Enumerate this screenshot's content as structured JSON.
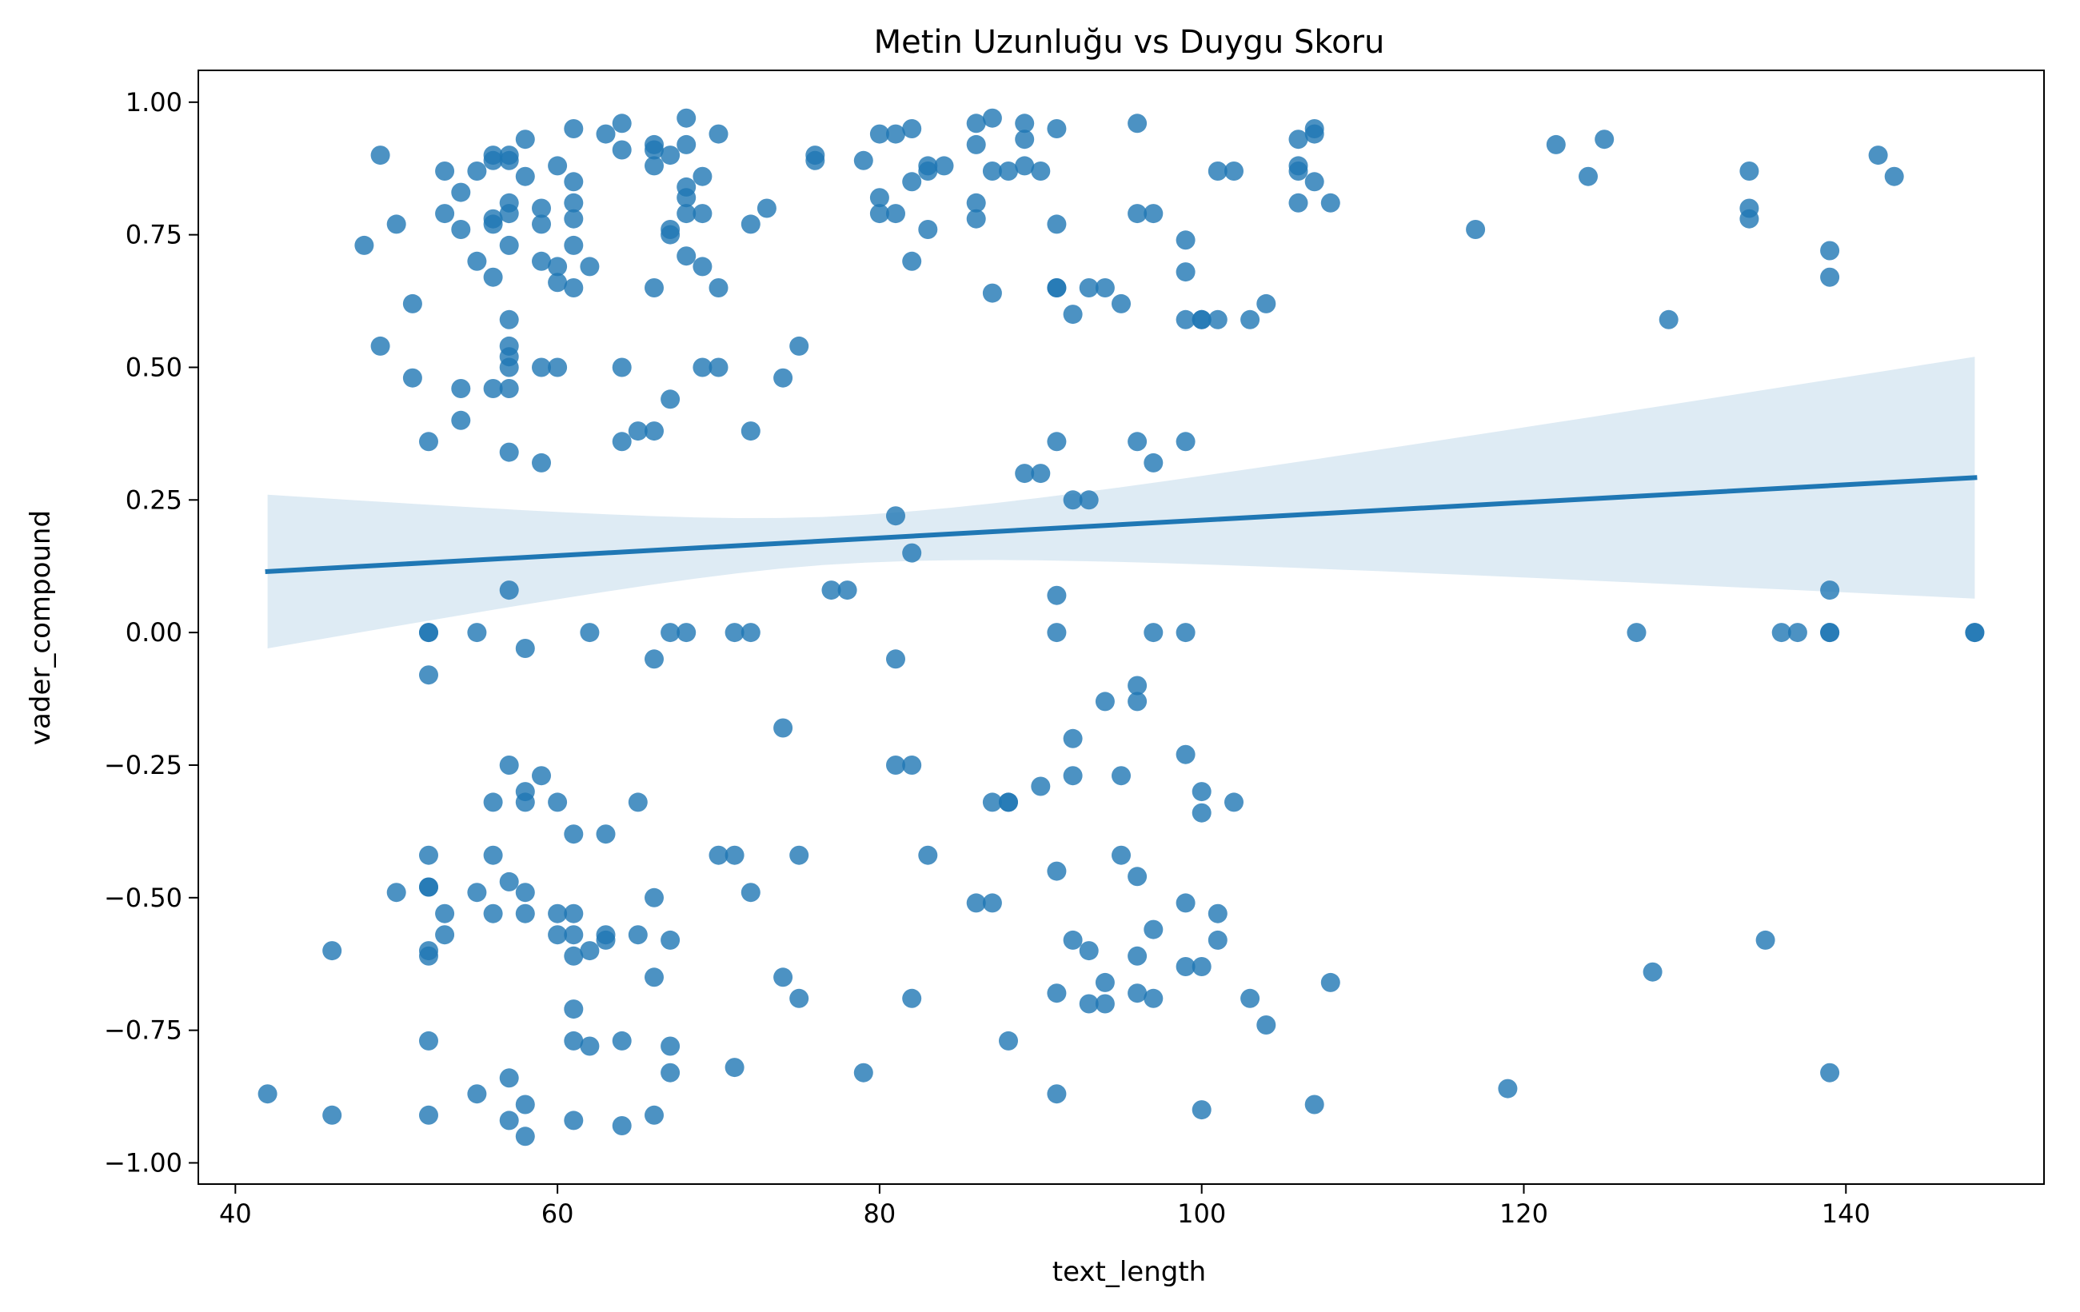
{
  "chart_data": {
    "type": "scatter",
    "title": "Metin Uzunluğu vs Duygu Skoru",
    "xlabel": "text_length",
    "ylabel": "vader_compound",
    "xlim": [
      37.7,
      152.3
    ],
    "ylim": [
      -1.04,
      1.06
    ],
    "xticks": [
      40,
      60,
      80,
      100,
      120,
      140
    ],
    "xtick_labels": [
      "40",
      "60",
      "80",
      "100",
      "120",
      "140"
    ],
    "yticks": [
      1.0,
      0.75,
      0.5,
      0.25,
      0.0,
      -0.25,
      -0.5,
      -0.75,
      -1.0
    ],
    "ytick_labels": [
      "1.00",
      "0.75",
      "0.50",
      "0.25",
      "0.00",
      "−0.25",
      "−0.50",
      "−0.75",
      "−1.00"
    ],
    "grid": false,
    "colors": {
      "points": "#1f77b4",
      "line": "#1f77b4",
      "band": "#1f77b4"
    },
    "series": [
      {
        "values": [
          [
            42,
            -0.87
          ],
          [
            46,
            -0.6
          ],
          [
            46,
            -0.91
          ],
          [
            48,
            0.73
          ],
          [
            49,
            0.9
          ],
          [
            49,
            0.54
          ],
          [
            50,
            0.77
          ],
          [
            50,
            -0.49
          ],
          [
            51,
            0.62
          ],
          [
            51,
            0.48
          ],
          [
            52,
            0.36
          ],
          [
            52,
            0.0
          ],
          [
            52,
            0.0
          ],
          [
            52,
            -0.08
          ],
          [
            52,
            -0.42
          ],
          [
            52,
            -0.48
          ],
          [
            52,
            -0.48
          ],
          [
            52,
            -0.6
          ],
          [
            52,
            -0.61
          ],
          [
            52,
            -0.77
          ],
          [
            52,
            -0.91
          ],
          [
            53,
            0.87
          ],
          [
            53,
            0.79
          ],
          [
            53,
            -0.53
          ],
          [
            53,
            -0.57
          ],
          [
            54,
            0.83
          ],
          [
            54,
            0.76
          ],
          [
            54,
            0.46
          ],
          [
            54,
            0.4
          ],
          [
            55,
            0.87
          ],
          [
            55,
            0.7
          ],
          [
            55,
            0.0
          ],
          [
            55,
            -0.49
          ],
          [
            55,
            -0.87
          ],
          [
            56,
            0.9
          ],
          [
            56,
            0.89
          ],
          [
            56,
            0.78
          ],
          [
            56,
            0.77
          ],
          [
            56,
            0.67
          ],
          [
            56,
            0.46
          ],
          [
            56,
            -0.32
          ],
          [
            56,
            -0.42
          ],
          [
            56,
            -0.53
          ],
          [
            57,
            0.9
          ],
          [
            57,
            0.89
          ],
          [
            57,
            0.81
          ],
          [
            57,
            0.79
          ],
          [
            57,
            0.73
          ],
          [
            57,
            0.59
          ],
          [
            57,
            0.54
          ],
          [
            57,
            0.52
          ],
          [
            57,
            0.5
          ],
          [
            57,
            0.46
          ],
          [
            57,
            0.34
          ],
          [
            57,
            0.08
          ],
          [
            57,
            -0.25
          ],
          [
            57,
            -0.47
          ],
          [
            57,
            -0.84
          ],
          [
            57,
            -0.92
          ],
          [
            58,
            0.93
          ],
          [
            58,
            0.86
          ],
          [
            58,
            -0.03
          ],
          [
            58,
            -0.3
          ],
          [
            58,
            -0.32
          ],
          [
            58,
            -0.49
          ],
          [
            58,
            -0.53
          ],
          [
            58,
            -0.89
          ],
          [
            58,
            -0.95
          ],
          [
            59,
            0.8
          ],
          [
            59,
            0.77
          ],
          [
            59,
            0.7
          ],
          [
            59,
            0.5
          ],
          [
            59,
            0.32
          ],
          [
            59,
            -0.27
          ],
          [
            60,
            0.88
          ],
          [
            60,
            0.69
          ],
          [
            60,
            0.66
          ],
          [
            60,
            0.5
          ],
          [
            60,
            -0.32
          ],
          [
            60,
            -0.53
          ],
          [
            60,
            -0.57
          ],
          [
            61,
            0.95
          ],
          [
            61,
            0.85
          ],
          [
            61,
            0.81
          ],
          [
            61,
            0.78
          ],
          [
            61,
            0.73
          ],
          [
            61,
            0.65
          ],
          [
            61,
            -0.38
          ],
          [
            61,
            -0.53
          ],
          [
            61,
            -0.57
          ],
          [
            61,
            -0.61
          ],
          [
            61,
            -0.71
          ],
          [
            61,
            -0.77
          ],
          [
            61,
            -0.92
          ],
          [
            62,
            0.69
          ],
          [
            62,
            0.0
          ],
          [
            62,
            -0.6
          ],
          [
            62,
            -0.78
          ],
          [
            63,
            0.94
          ],
          [
            63,
            -0.38
          ],
          [
            63,
            -0.57
          ],
          [
            63,
            -0.58
          ],
          [
            64,
            0.96
          ],
          [
            64,
            0.91
          ],
          [
            64,
            0.5
          ],
          [
            64,
            0.36
          ],
          [
            64,
            -0.77
          ],
          [
            64,
            -0.93
          ],
          [
            65,
            0.38
          ],
          [
            65,
            -0.32
          ],
          [
            65,
            -0.57
          ],
          [
            66,
            0.92
          ],
          [
            66,
            0.91
          ],
          [
            66,
            0.88
          ],
          [
            66,
            0.65
          ],
          [
            66,
            0.38
          ],
          [
            66,
            -0.05
          ],
          [
            66,
            -0.5
          ],
          [
            66,
            -0.65
          ],
          [
            66,
            -0.91
          ],
          [
            67,
            0.9
          ],
          [
            67,
            0.76
          ],
          [
            67,
            0.75
          ],
          [
            67,
            0.44
          ],
          [
            67,
            0.0
          ],
          [
            67,
            -0.58
          ],
          [
            67,
            -0.78
          ],
          [
            67,
            -0.83
          ],
          [
            68,
            0.97
          ],
          [
            68,
            0.92
          ],
          [
            68,
            0.84
          ],
          [
            68,
            0.82
          ],
          [
            68,
            0.79
          ],
          [
            68,
            0.71
          ],
          [
            68,
            0.0
          ],
          [
            69,
            0.86
          ],
          [
            69,
            0.79
          ],
          [
            69,
            0.69
          ],
          [
            69,
            0.5
          ],
          [
            70,
            0.94
          ],
          [
            70,
            0.65
          ],
          [
            70,
            0.5
          ],
          [
            70,
            -0.42
          ],
          [
            71,
            0.0
          ],
          [
            71,
            -0.42
          ],
          [
            71,
            -0.82
          ],
          [
            72,
            0.77
          ],
          [
            72,
            0.38
          ],
          [
            72,
            0.0
          ],
          [
            72,
            -0.49
          ],
          [
            73,
            0.8
          ],
          [
            74,
            0.48
          ],
          [
            74,
            -0.18
          ],
          [
            74,
            -0.65
          ],
          [
            75,
            0.54
          ],
          [
            75,
            -0.42
          ],
          [
            75,
            -0.69
          ],
          [
            76,
            0.9
          ],
          [
            76,
            0.89
          ],
          [
            77,
            0.08
          ],
          [
            78,
            0.08
          ],
          [
            79,
            0.89
          ],
          [
            79,
            -0.83
          ],
          [
            80,
            0.94
          ],
          [
            80,
            0.82
          ],
          [
            80,
            0.79
          ],
          [
            81,
            0.94
          ],
          [
            81,
            0.79
          ],
          [
            81,
            0.22
          ],
          [
            81,
            -0.05
          ],
          [
            81,
            -0.25
          ],
          [
            82,
            0.95
          ],
          [
            82,
            0.85
          ],
          [
            82,
            0.7
          ],
          [
            82,
            0.15
          ],
          [
            82,
            -0.25
          ],
          [
            82,
            -0.69
          ],
          [
            83,
            0.88
          ],
          [
            83,
            0.87
          ],
          [
            83,
            0.76
          ],
          [
            83,
            -0.42
          ],
          [
            84,
            0.88
          ],
          [
            86,
            0.96
          ],
          [
            86,
            0.92
          ],
          [
            86,
            0.81
          ],
          [
            86,
            0.78
          ],
          [
            86,
            -0.51
          ],
          [
            87,
            0.97
          ],
          [
            87,
            0.87
          ],
          [
            87,
            0.64
          ],
          [
            87,
            -0.32
          ],
          [
            87,
            -0.51
          ],
          [
            88,
            0.87
          ],
          [
            88,
            -0.32
          ],
          [
            88,
            -0.32
          ],
          [
            88,
            -0.77
          ],
          [
            89,
            0.96
          ],
          [
            89,
            0.93
          ],
          [
            89,
            0.88
          ],
          [
            89,
            0.3
          ],
          [
            90,
            0.87
          ],
          [
            90,
            0.3
          ],
          [
            90,
            -0.29
          ],
          [
            91,
            0.95
          ],
          [
            91,
            0.77
          ],
          [
            91,
            0.65
          ],
          [
            91,
            0.65
          ],
          [
            91,
            0.36
          ],
          [
            91,
            0.07
          ],
          [
            91,
            0.0
          ],
          [
            91,
            -0.45
          ],
          [
            91,
            -0.68
          ],
          [
            91,
            -0.87
          ],
          [
            92,
            0.6
          ],
          [
            92,
            0.25
          ],
          [
            92,
            -0.2
          ],
          [
            92,
            -0.27
          ],
          [
            92,
            -0.58
          ],
          [
            93,
            0.65
          ],
          [
            93,
            0.25
          ],
          [
            93,
            -0.6
          ],
          [
            93,
            -0.7
          ],
          [
            94,
            0.65
          ],
          [
            94,
            -0.13
          ],
          [
            94,
            -0.66
          ],
          [
            94,
            -0.7
          ],
          [
            95,
            0.62
          ],
          [
            95,
            -0.27
          ],
          [
            95,
            -0.42
          ],
          [
            96,
            0.96
          ],
          [
            96,
            0.79
          ],
          [
            96,
            0.36
          ],
          [
            96,
            -0.1
          ],
          [
            96,
            -0.13
          ],
          [
            96,
            -0.46
          ],
          [
            96,
            -0.61
          ],
          [
            96,
            -0.68
          ],
          [
            97,
            0.79
          ],
          [
            97,
            0.32
          ],
          [
            97,
            0.0
          ],
          [
            97,
            -0.56
          ],
          [
            97,
            -0.69
          ],
          [
            99,
            0.74
          ],
          [
            99,
            0.68
          ],
          [
            99,
            0.59
          ],
          [
            99,
            0.36
          ],
          [
            99,
            0.0
          ],
          [
            99,
            -0.23
          ],
          [
            99,
            -0.51
          ],
          [
            99,
            -0.63
          ],
          [
            100,
            0.59
          ],
          [
            100,
            0.59
          ],
          [
            100,
            -0.3
          ],
          [
            100,
            -0.34
          ],
          [
            100,
            -0.63
          ],
          [
            100,
            -0.9
          ],
          [
            101,
            0.87
          ],
          [
            101,
            0.59
          ],
          [
            101,
            -0.53
          ],
          [
            101,
            -0.58
          ],
          [
            102,
            0.87
          ],
          [
            102,
            -0.32
          ],
          [
            103,
            0.59
          ],
          [
            103,
            -0.69
          ],
          [
            104,
            0.62
          ],
          [
            104,
            -0.74
          ],
          [
            106,
            0.93
          ],
          [
            106,
            0.88
          ],
          [
            106,
            0.87
          ],
          [
            106,
            0.81
          ],
          [
            107,
            0.95
          ],
          [
            107,
            0.94
          ],
          [
            107,
            0.85
          ],
          [
            107,
            -0.89
          ],
          [
            108,
            0.81
          ],
          [
            108,
            -0.66
          ],
          [
            117,
            0.76
          ],
          [
            119,
            -0.86
          ],
          [
            122,
            0.92
          ],
          [
            124,
            0.86
          ],
          [
            125,
            0.93
          ],
          [
            127,
            0.0
          ],
          [
            128,
            -0.64
          ],
          [
            129,
            0.59
          ],
          [
            134,
            0.87
          ],
          [
            134,
            0.8
          ],
          [
            134,
            0.78
          ],
          [
            135,
            -0.58
          ],
          [
            136,
            0.0
          ],
          [
            137,
            0.0
          ],
          [
            139,
            0.72
          ],
          [
            139,
            0.67
          ],
          [
            139,
            0.08
          ],
          [
            139,
            0.0
          ],
          [
            139,
            0.0
          ],
          [
            139,
            -0.83
          ],
          [
            142,
            0.9
          ],
          [
            143,
            0.86
          ],
          [
            148,
            0.0
          ],
          [
            148,
            0.0
          ]
        ]
      }
    ],
    "regression": {
      "x": [
        42,
        148
      ],
      "y": [
        0.115,
        0.292
      ],
      "ci_lower": [
        -0.035,
        0.087
      ],
      "ci_upper": [
        0.26,
        0.52
      ]
    }
  }
}
